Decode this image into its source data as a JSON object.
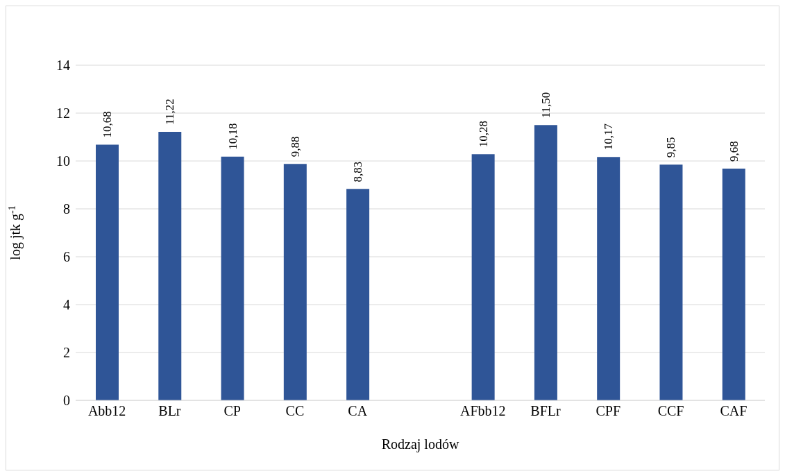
{
  "chart_data": {
    "type": "bar",
    "xlabel": "Rodzaj lodów",
    "ylabel": "log jtk g$^{-1}$",
    "categories": [
      "Abb12",
      "BLr",
      "CP",
      "CC",
      "CA",
      null,
      "AFbb12",
      "BFLr",
      "CPF",
      "CCF",
      "CAF"
    ],
    "values": [
      10.68,
      11.22,
      10.18,
      9.88,
      8.83,
      null,
      10.28,
      11.5,
      10.17,
      9.85,
      9.68
    ],
    "value_labels": [
      "10,68",
      "11,22",
      "10,18",
      "9,88",
      "8,83",
      null,
      "10,28",
      "11,50",
      "10,17",
      "9,85",
      "9,68"
    ],
    "color": "#2f5597",
    "ylim": [
      0,
      14
    ],
    "yticks": [
      0,
      2,
      4,
      6,
      8,
      10,
      12,
      14
    ],
    "grid": "y",
    "legend": false
  }
}
